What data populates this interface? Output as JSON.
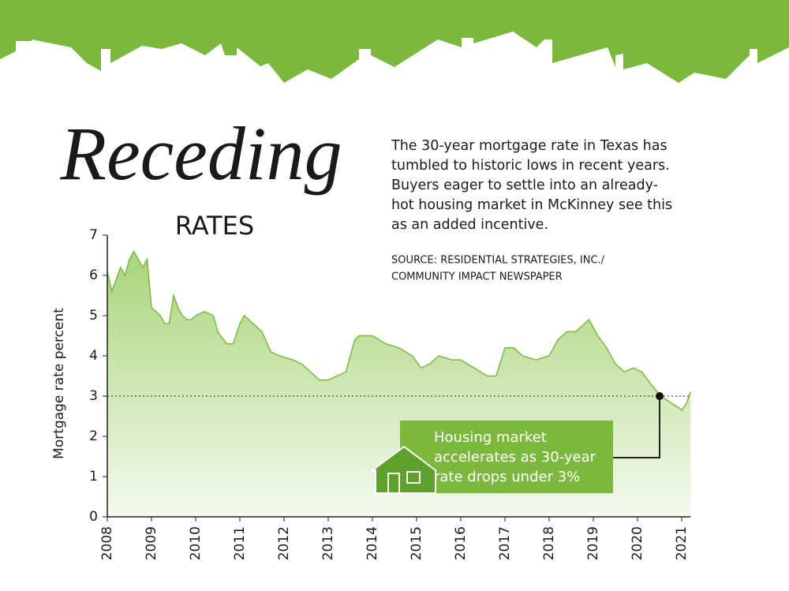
{
  "chart_data": {
    "type": "area",
    "title": "Receding",
    "subtitle": "RATES",
    "description": [
      "The 30-year mortgage rate in Texas has",
      "tumbled to historic lows in recent years.",
      "Buyers eager to settle into an already-",
      "hot housing market in McKinney see this",
      "as an added incentive."
    ],
    "source": [
      "SOURCE: RESIDENTIAL STRATEGIES, INC./",
      "COMMUNITY IMPACT NEWSPAPER"
    ],
    "y_label": "Mortgage rate percent",
    "color": "#7cb83e",
    "x": [
      2008.0,
      2008.1,
      2008.2,
      2008.3,
      2008.4,
      2008.5,
      2008.6,
      2008.7,
      2008.8,
      2008.9,
      2009.0,
      2009.1,
      2009.2,
      2009.3,
      2009.4,
      2009.5,
      2009.6,
      2009.7,
      2009.8,
      2009.9,
      2010.0,
      2010.2,
      2010.4,
      2010.5,
      2010.7,
      2010.85,
      2011.0,
      2011.1,
      2011.3,
      2011.5,
      2011.7,
      2011.9,
      2012.2,
      2012.4,
      2012.6,
      2012.8,
      2013.0,
      2013.2,
      2013.4,
      2013.6,
      2013.7,
      2013.9,
      2014.0,
      2014.3,
      2014.6,
      2014.9,
      2015.1,
      2015.3,
      2015.5,
      2015.8,
      2016.0,
      2016.3,
      2016.6,
      2016.8,
      2017.0,
      2017.2,
      2017.4,
      2017.7,
      2018.0,
      2018.2,
      2018.4,
      2018.6,
      2018.8,
      2018.9,
      2019.1,
      2019.3,
      2019.5,
      2019.7,
      2019.9,
      2020.1,
      2020.3,
      2020.45,
      2020.6,
      2020.8,
      2020.95,
      2021.0,
      2021.1,
      2021.2
    ],
    "values": [
      6.1,
      5.6,
      5.9,
      6.2,
      6.0,
      6.4,
      6.6,
      6.4,
      6.2,
      6.4,
      5.2,
      5.1,
      5.0,
      4.8,
      4.8,
      5.5,
      5.2,
      5.0,
      4.9,
      4.9,
      5.0,
      5.1,
      5.0,
      4.6,
      4.3,
      4.3,
      4.8,
      5.0,
      4.8,
      4.6,
      4.1,
      4.0,
      3.9,
      3.8,
      3.6,
      3.4,
      3.4,
      3.5,
      3.6,
      4.4,
      4.5,
      4.5,
      4.5,
      4.3,
      4.2,
      4.0,
      3.7,
      3.8,
      4.0,
      3.9,
      3.9,
      3.7,
      3.5,
      3.5,
      4.2,
      4.2,
      4.0,
      3.9,
      4.0,
      4.4,
      4.6,
      4.6,
      4.8,
      4.9,
      4.5,
      4.2,
      3.8,
      3.6,
      3.7,
      3.6,
      3.3,
      3.1,
      2.95,
      2.8,
      2.7,
      2.65,
      2.8,
      3.1
    ],
    "xlim": [
      2008,
      2021.2
    ],
    "xticks": [
      2008,
      2009,
      2010,
      2011,
      2012,
      2013,
      2014,
      2015,
      2016,
      2017,
      2018,
      2019,
      2020,
      2021
    ],
    "ylim": [
      0,
      7
    ],
    "yticks": [
      0,
      1,
      2,
      3,
      4,
      5,
      6,
      7
    ],
    "reference_line": 3,
    "annotation": {
      "text": [
        "Housing market",
        "accelerates as 30-year",
        "rate drops under 3%"
      ],
      "x": 2020.5,
      "y": 3
    }
  }
}
